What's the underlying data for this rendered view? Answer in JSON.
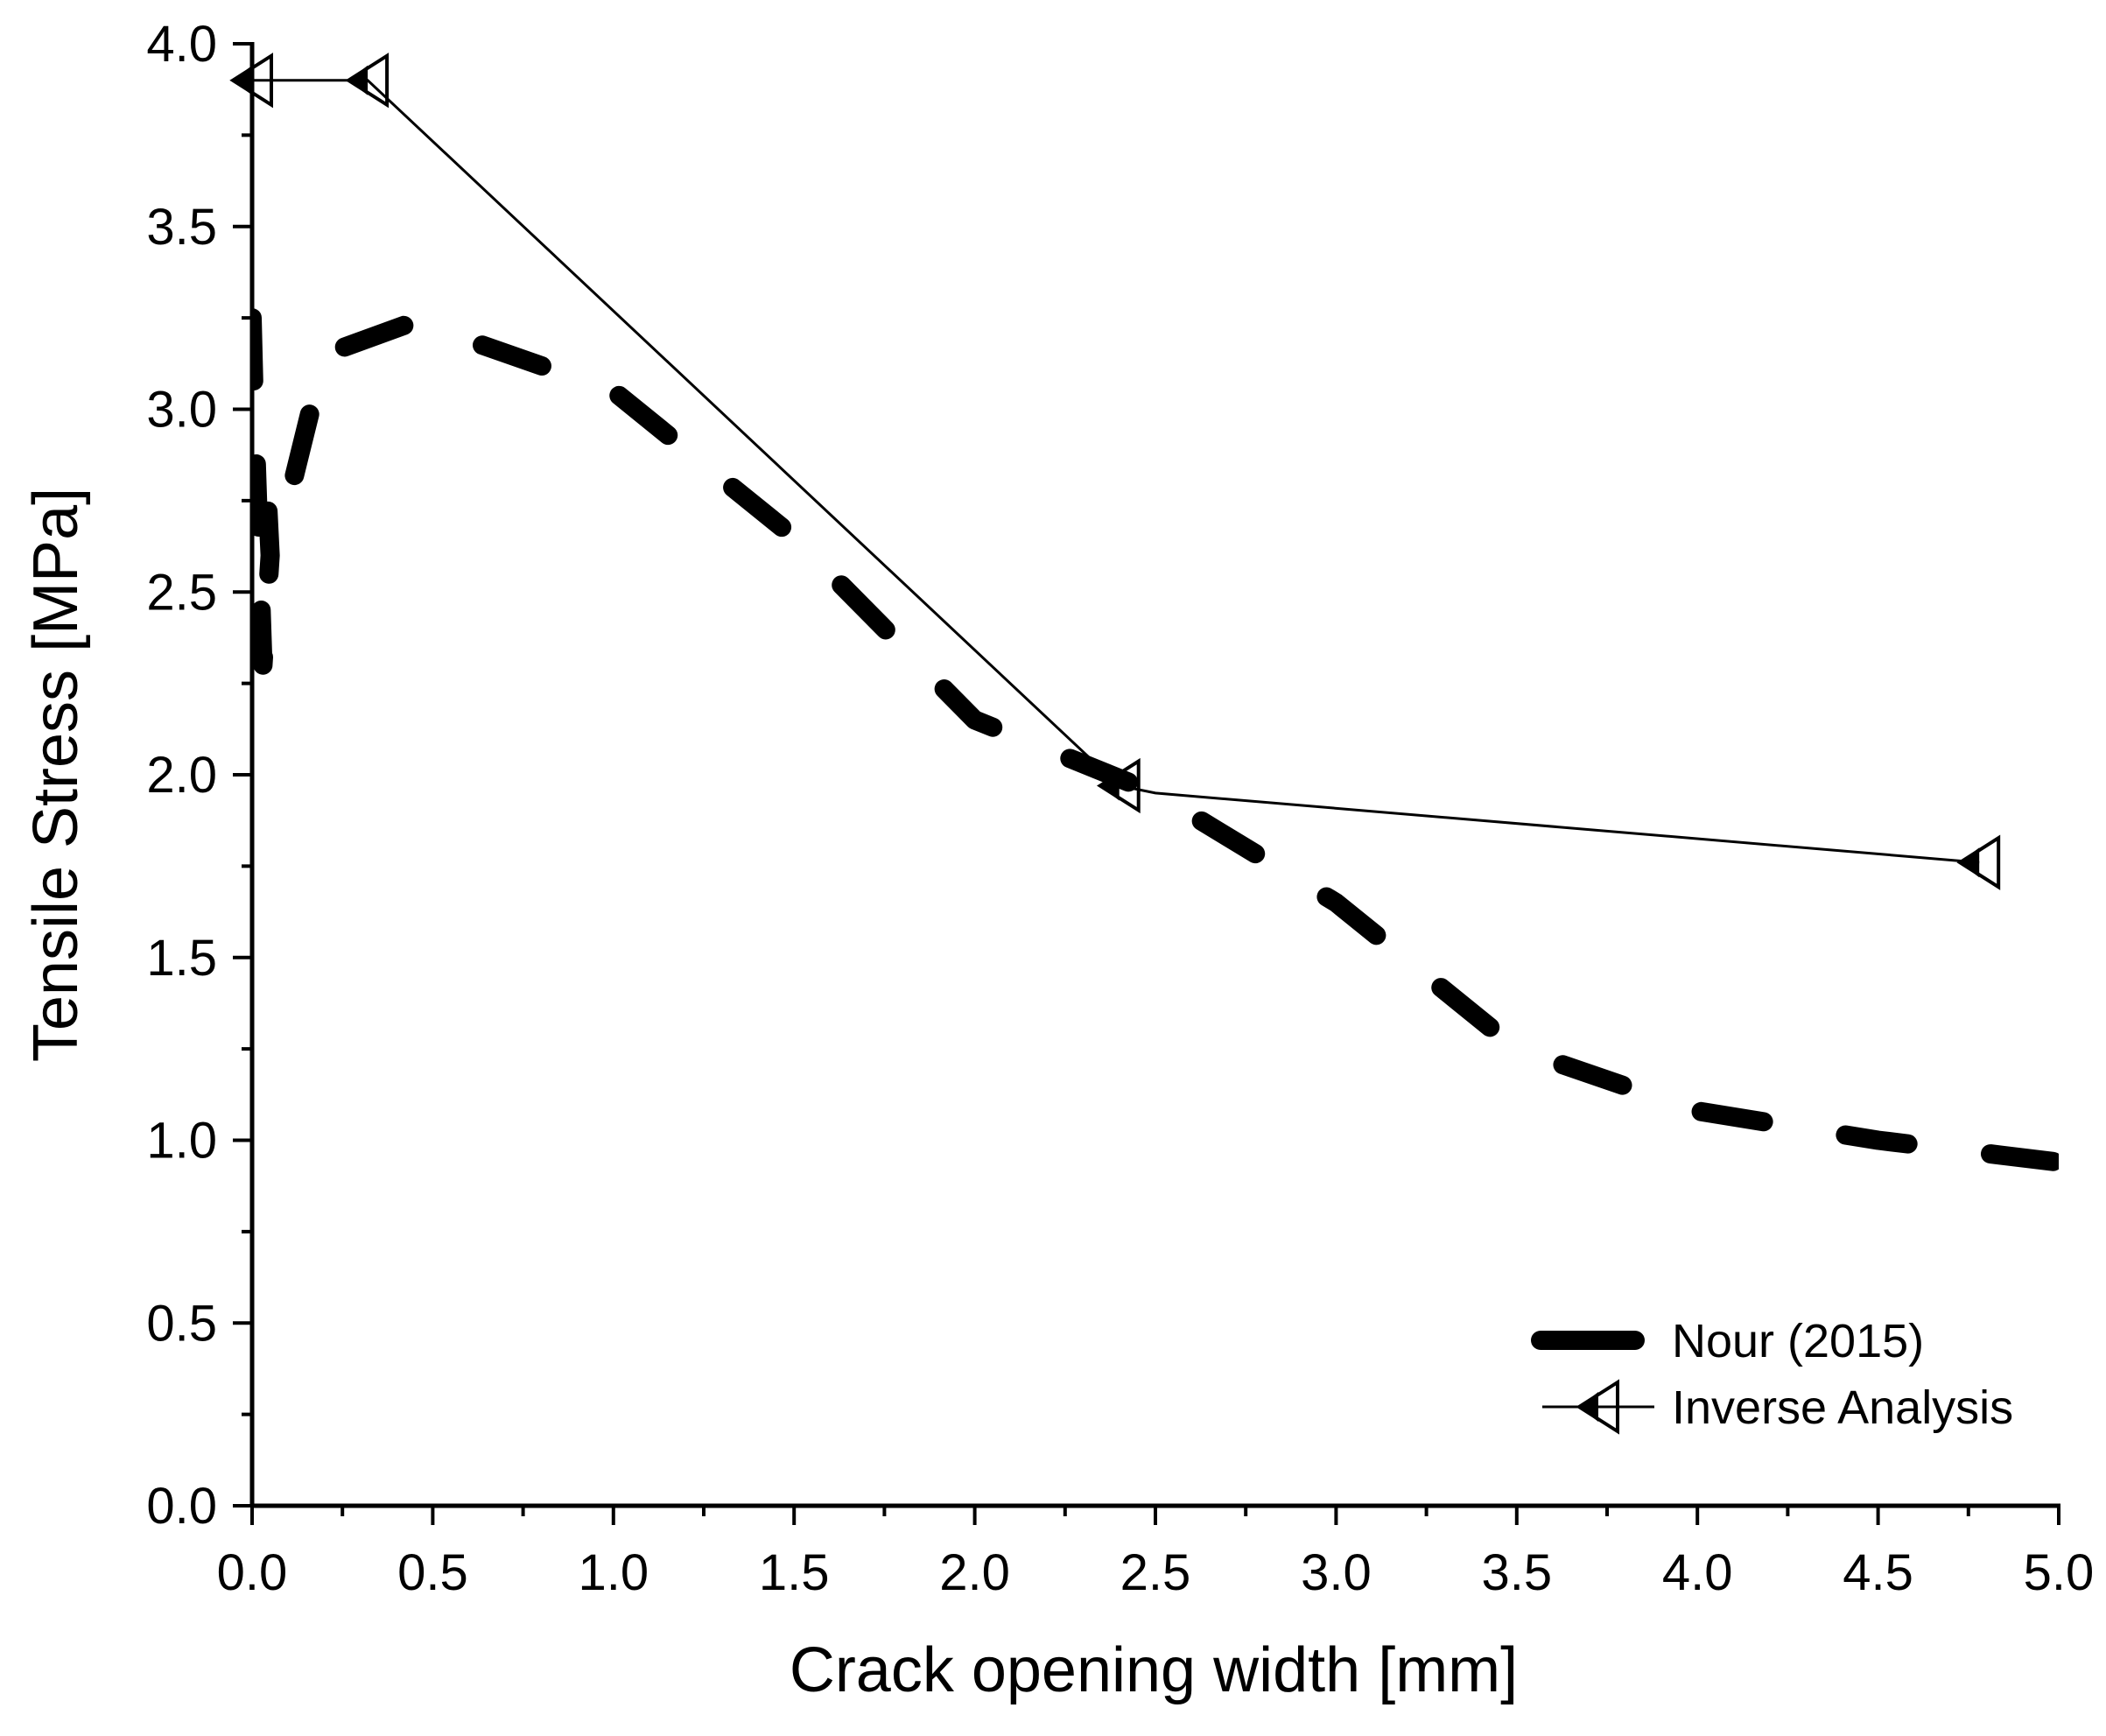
{
  "chart_data": {
    "type": "line",
    "xlabel": "Crack opening width [mm]",
    "ylabel": "Tensile Stress [MPa]",
    "xlim": [
      0,
      5
    ],
    "ylim": [
      0,
      4
    ],
    "xticks": [
      0,
      0.5,
      1,
      1.5,
      2,
      2.5,
      3,
      3.5,
      4,
      4.5,
      5
    ],
    "yticks": [
      0,
      0.5,
      1,
      1.5,
      2,
      2.5,
      3,
      3.5,
      4
    ],
    "x_tick_labels": [
      "0.0",
      "0.5",
      "1.0",
      "1.5",
      "2.0",
      "2.5",
      "3.0",
      "3.5",
      "4.0",
      "4.5",
      "5.0"
    ],
    "y_tick_labels": [
      "0.0",
      "0.5",
      "1.0",
      "1.5",
      "2.0",
      "2.5",
      "3.0",
      "3.5",
      "4.0"
    ],
    "grid": false,
    "legend_position": "bottom-right",
    "series": [
      {
        "name": "Nour (2015)",
        "style": "dashed-thick",
        "color": "#000000",
        "x": [
          0,
          0.005,
          0.03,
          0.05,
          0.04,
          0.1,
          0.2,
          0.45,
          1.0,
          1.5,
          2.0,
          2.5,
          3.0,
          3.5,
          4.0,
          4.5,
          5.0
        ],
        "y": [
          3.25,
          3.05,
          2.3,
          2.6,
          2.8,
          2.75,
          3.15,
          3.24,
          3.05,
          2.65,
          2.15,
          1.95,
          1.65,
          1.25,
          1.08,
          1.0,
          0.94
        ]
      },
      {
        "name": "Inverse Analysis",
        "style": "solid-thin-marker",
        "marker": "left-triangle-half-filled",
        "color": "#000000",
        "x": [
          0,
          0.32,
          2.4,
          2.5,
          4.78
        ],
        "y": [
          3.9,
          3.9,
          1.97,
          1.95,
          1.76
        ]
      }
    ]
  }
}
